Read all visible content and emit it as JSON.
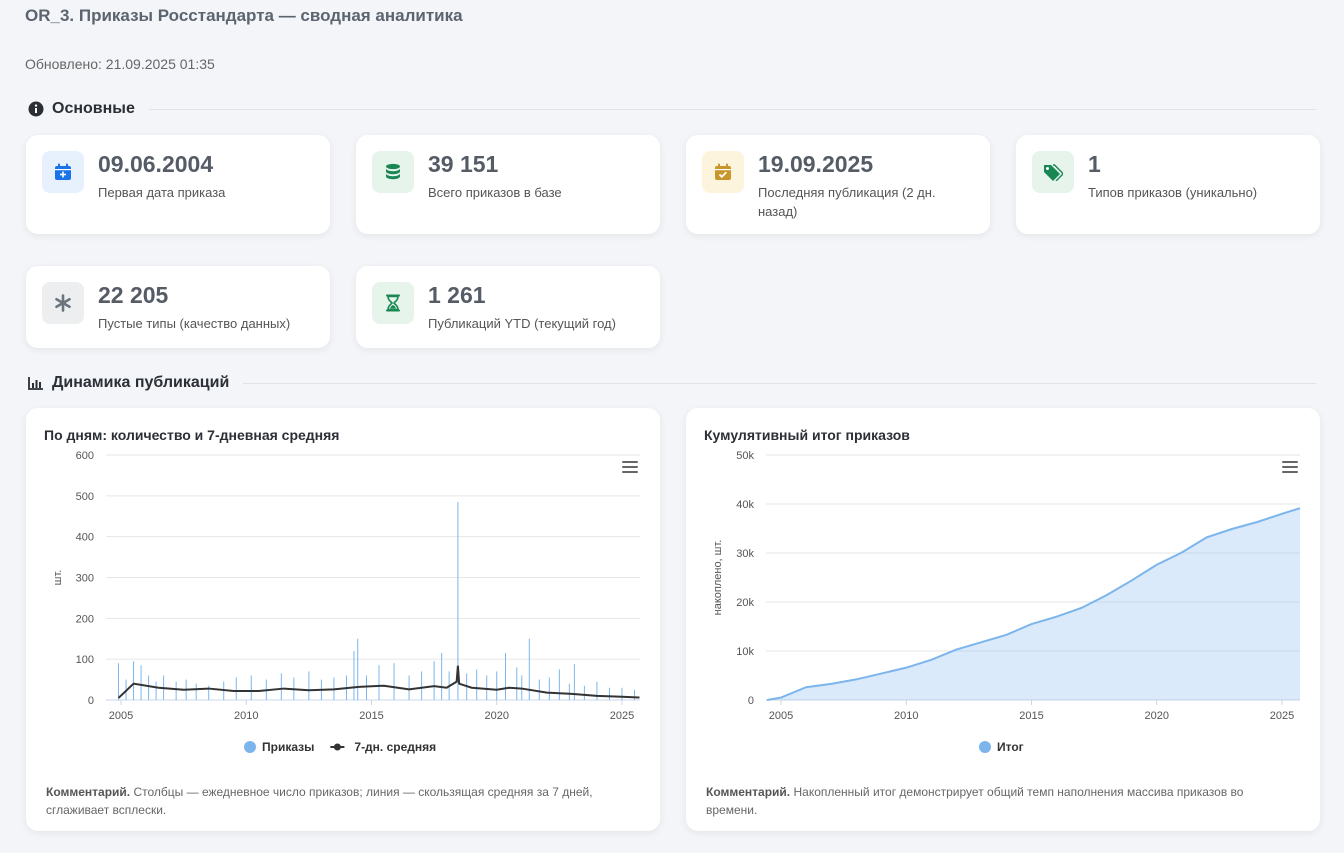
{
  "header": {
    "title": "OR_3. Приказы Росстандарта — сводная аналитика",
    "updated": "Обновлено: 21.09.2025 01:35"
  },
  "sections": {
    "main": "Основные",
    "dynamics": "Динамика публикаций"
  },
  "kpis": [
    {
      "value": "09.06.2004",
      "label": "Первая дата приказа",
      "icon": "calendar-plus-icon",
      "color": "#1a73e8",
      "bg": "#e7f0fd"
    },
    {
      "value": "39 151",
      "label": "Всего приказов в базе",
      "icon": "database-icon",
      "color": "#198754",
      "bg": "#e6f4ec"
    },
    {
      "value": "19.09.2025",
      "label": "Последняя публикация (2 дн. назад)",
      "icon": "calendar-check-icon",
      "color": "#c9962b",
      "bg": "#fdf4dd"
    },
    {
      "value": "1",
      "label": "Типов приказов (уникально)",
      "icon": "tags-icon",
      "color": "#198754",
      "bg": "#e6f4ec"
    },
    {
      "value": "22 205",
      "label": "Пустые типы (качество данных)",
      "icon": "asterisk-icon",
      "color": "#6c757d",
      "bg": "#eceef0"
    },
    {
      "value": "1 261",
      "label": "Публикаций YTD (текущий год)",
      "icon": "hourglass-icon",
      "color": "#198754",
      "bg": "#e6f4ec"
    }
  ],
  "charts": {
    "daily": {
      "title": "По дням: количество и 7-дневная средняя",
      "comment_bold": "Комментарий.",
      "comment": " Столбцы — ежедневное число приказов; линия — скользящая средняя за 7 дней, сглаживает всплески.",
      "legend": [
        "Приказы",
        "7-дн. средняя"
      ]
    },
    "cumulative": {
      "title": "Кумулятивный итог приказов",
      "comment_bold": "Комментарий.",
      "comment": " Накопленный итог демонстрирует общий темп наполнения массива приказов во времени.",
      "legend": [
        "Итог"
      ]
    }
  },
  "chart_data": [
    {
      "type": "bar",
      "title": "По дням: количество и 7-дневная средняя",
      "xlabel": "",
      "ylabel": "шт.",
      "ylim": [
        0,
        600
      ],
      "yticks": [
        0,
        100,
        200,
        300,
        400,
        500,
        600
      ],
      "xticks": [
        2005,
        2010,
        2015,
        2020,
        2025
      ],
      "xlim": [
        2004.4,
        2025.72
      ],
      "grid": true,
      "legend_position": "bottom",
      "series": [
        {
          "name": "Приказы",
          "color": "#7cb5ec",
          "render": "bar",
          "x": [
            2004.9,
            2005.2,
            2005.5,
            2005.8,
            2006.1,
            2006.4,
            2006.7,
            2007.2,
            2007.6,
            2008.0,
            2008.5,
            2009.1,
            2009.6,
            2010.2,
            2010.8,
            2011.4,
            2011.9,
            2012.5,
            2013.0,
            2013.5,
            2014.0,
            2014.3,
            2014.45,
            2014.8,
            2015.3,
            2015.9,
            2016.5,
            2017.0,
            2017.5,
            2017.8,
            2018.1,
            2018.45,
            2018.8,
            2019.2,
            2019.6,
            2020.0,
            2020.35,
            2020.8,
            2021.0,
            2021.3,
            2021.7,
            2022.1,
            2022.5,
            2022.9,
            2023.1,
            2023.5,
            2024.0,
            2024.5,
            2025.0,
            2025.5
          ],
          "values": [
            90,
            50,
            95,
            85,
            60,
            45,
            60,
            45,
            50,
            40,
            35,
            45,
            55,
            60,
            50,
            65,
            55,
            70,
            50,
            55,
            60,
            120,
            150,
            60,
            85,
            90,
            60,
            70,
            95,
            115,
            70,
            485,
            65,
            75,
            60,
            70,
            115,
            80,
            60,
            150,
            50,
            55,
            75,
            40,
            88,
            35,
            45,
            30,
            30,
            25
          ]
        },
        {
          "name": "7-дн. средняя",
          "color": "#333333",
          "render": "line",
          "x": [
            2004.9,
            2005.5,
            2006.5,
            2007.5,
            2008.5,
            2009.5,
            2010.5,
            2011.5,
            2012.5,
            2013.5,
            2014.5,
            2015.5,
            2016.5,
            2017.5,
            2018.0,
            2018.4,
            2018.45,
            2018.5,
            2019.0,
            2020.0,
            2020.5,
            2021.0,
            2022.0,
            2023.0,
            2024.0,
            2025.0,
            2025.7
          ],
          "values": [
            5,
            40,
            30,
            25,
            28,
            22,
            22,
            28,
            24,
            26,
            32,
            35,
            26,
            34,
            30,
            45,
            84,
            40,
            30,
            25,
            30,
            28,
            18,
            15,
            10,
            8,
            6
          ]
        }
      ]
    },
    {
      "type": "area",
      "title": "Кумулятивный итог приказов",
      "xlabel": "",
      "ylabel": "накоплено, шт.",
      "ylim": [
        0,
        50000
      ],
      "yticks": [
        "0",
        "10k",
        "20k",
        "30k",
        "40k",
        "50k"
      ],
      "xticks": [
        2005,
        2010,
        2015,
        2020,
        2025
      ],
      "xlim": [
        2004.4,
        2025.72
      ],
      "grid": true,
      "legend_position": "bottom",
      "series": [
        {
          "name": "Итог",
          "color": "#7cb5ec",
          "x": [
            2004.44,
            2005.0,
            2006.0,
            2007.0,
            2008.0,
            2009.0,
            2010.0,
            2011.0,
            2012.0,
            2013.0,
            2014.0,
            2015.0,
            2016.0,
            2017.0,
            2018.0,
            2019.0,
            2020.0,
            2021.0,
            2022.0,
            2023.0,
            2024.0,
            2025.0,
            2025.72
          ],
          "values": [
            0,
            500,
            2600,
            3300,
            4200,
            5400,
            6600,
            8200,
            10300,
            11800,
            13300,
            15500,
            17000,
            18800,
            21400,
            24400,
            27600,
            30100,
            33200,
            34900,
            36300,
            38000,
            39151
          ]
        }
      ]
    }
  ]
}
